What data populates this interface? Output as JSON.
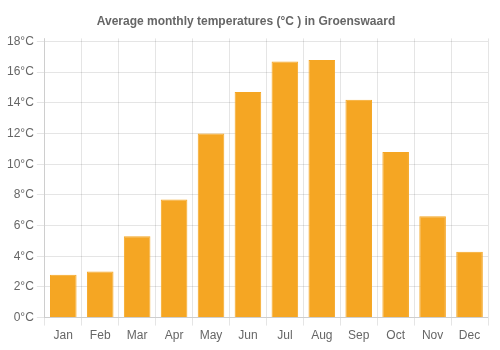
{
  "chart_data": {
    "type": "bar",
    "title": "Average monthly temperatures (°C ) in Groenswaard",
    "categories": [
      "Jan",
      "Feb",
      "Mar",
      "Apr",
      "May",
      "Jun",
      "Jul",
      "Aug",
      "Sep",
      "Oct",
      "Nov",
      "Dec"
    ],
    "values": [
      2.8,
      3.0,
      5.3,
      7.7,
      12.0,
      14.7,
      16.7,
      16.8,
      14.2,
      10.8,
      6.6,
      4.3
    ],
    "color": "#F5A623",
    "ylim": [
      0,
      18.2
    ],
    "yticks": [
      {
        "value": 0,
        "label": "0°C"
      },
      {
        "value": 2,
        "label": "2°C"
      },
      {
        "value": 4,
        "label": "4°C"
      },
      {
        "value": 6,
        "label": "6°C"
      },
      {
        "value": 8,
        "label": "8°C"
      },
      {
        "value": 10,
        "label": "10°C"
      },
      {
        "value": 12,
        "label": "12°C"
      },
      {
        "value": 14,
        "label": "14°C"
      },
      {
        "value": 16,
        "label": "16°C"
      },
      {
        "value": 18,
        "label": "18°C"
      }
    ],
    "grid": true
  }
}
